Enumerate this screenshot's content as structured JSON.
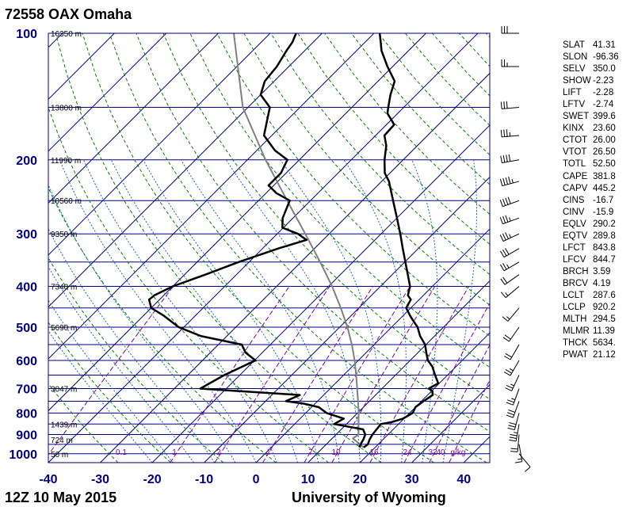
{
  "title": "72558 OAX Omaha",
  "footer": {
    "time": "12Z 10 May 2015",
    "source": "University of Wyoming"
  },
  "chart_data": {
    "type": "skew-t",
    "x_ticks": [
      -40,
      -30,
      -20,
      -10,
      0,
      10,
      20,
      30,
      40
    ],
    "xlim": [
      -40,
      45
    ],
    "p_ticks": [
      100,
      200,
      300,
      400,
      500,
      600,
      700,
      800,
      900,
      1000
    ],
    "plim": [
      100,
      1050
    ],
    "isobars": [
      100,
      150,
      200,
      250,
      300,
      350,
      400,
      450,
      500,
      550,
      600,
      650,
      700,
      750,
      800,
      850,
      900,
      950,
      1000,
      1050
    ],
    "height_labels": [
      {
        "p": 100,
        "text": "16350 m"
      },
      {
        "p": 150,
        "text": "13800 m"
      },
      {
        "p": 200,
        "text": "11990 m"
      },
      {
        "p": 250,
        "text": "10560 m"
      },
      {
        "p": 300,
        "text": "9350 m"
      },
      {
        "p": 400,
        "text": "7340 m"
      },
      {
        "p": 500,
        "text": "5690 m"
      },
      {
        "p": 700,
        "text": "3047 m"
      },
      {
        "p": 850,
        "text": "1439 m"
      },
      {
        "p": 925,
        "text": "724 m"
      },
      {
        "p": 1000,
        "text": "56 m"
      }
    ],
    "mixing_ratio_labels": [
      "0.1",
      "1",
      "2",
      "4",
      "7",
      "10",
      "16",
      "24",
      "32",
      "40",
      "g/kg"
    ],
    "temperature": [
      [
        966,
        17.8
      ],
      [
        950,
        18.0
      ],
      [
        925,
        17.4
      ],
      [
        900,
        17.0
      ],
      [
        875,
        16.8
      ],
      [
        850,
        16.6
      ],
      [
        840,
        18.4
      ],
      [
        825,
        19.8
      ],
      [
        800,
        20.6
      ],
      [
        775,
        20.0
      ],
      [
        750,
        20.4
      ],
      [
        725,
        21.0
      ],
      [
        710,
        20.2
      ],
      [
        700,
        19.0
      ],
      [
        680,
        19.8
      ],
      [
        650,
        17.6
      ],
      [
        620,
        15.4
      ],
      [
        600,
        13.4
      ],
      [
        575,
        11.6
      ],
      [
        550,
        9.8
      ],
      [
        525,
        7.2
      ],
      [
        500,
        5.0
      ],
      [
        480,
        2.6
      ],
      [
        470,
        1.4
      ],
      [
        450,
        -0.9
      ],
      [
        430,
        -1.6
      ],
      [
        420,
        -3.0
      ],
      [
        400,
        -4.3
      ],
      [
        375,
        -7.0
      ],
      [
        350,
        -9.9
      ],
      [
        325,
        -13.0
      ],
      [
        300,
        -16.3
      ],
      [
        275,
        -20.0
      ],
      [
        250,
        -24.1
      ],
      [
        225,
        -28.6
      ],
      [
        215,
        -31.0
      ],
      [
        200,
        -33.6
      ],
      [
        185,
        -36.0
      ],
      [
        175,
        -38.3
      ],
      [
        165,
        -38.5
      ],
      [
        155,
        -42.0
      ],
      [
        150,
        -43.0
      ],
      [
        140,
        -45.0
      ],
      [
        130,
        -46.8
      ],
      [
        120,
        -51.0
      ],
      [
        110,
        -55.2
      ],
      [
        105,
        -57.0
      ],
      [
        100,
        -58.9
      ]
    ],
    "dewpoint": [
      [
        966,
        17.0
      ],
      [
        950,
        16.6
      ],
      [
        925,
        16.2
      ],
      [
        900,
        15.6
      ],
      [
        875,
        14.2
      ],
      [
        850,
        7.6
      ],
      [
        825,
        8.4
      ],
      [
        800,
        4.0
      ],
      [
        775,
        1.4
      ],
      [
        760,
        -2.2
      ],
      [
        750,
        -6.1
      ],
      [
        725,
        -4.6
      ],
      [
        700,
        -25.0
      ],
      [
        650,
        -23.0
      ],
      [
        600,
        -19.8
      ],
      [
        575,
        -23.2
      ],
      [
        550,
        -25.5
      ],
      [
        525,
        -35.0
      ],
      [
        500,
        -41.0
      ],
      [
        470,
        -46.0
      ],
      [
        450,
        -50.0
      ],
      [
        430,
        -52.0
      ],
      [
        420,
        -51.8
      ],
      [
        400,
        -50.0
      ],
      [
        375,
        -46.0
      ],
      [
        350,
        -42.0
      ],
      [
        325,
        -37.0
      ],
      [
        310,
        -33.2
      ],
      [
        300,
        -36.0
      ],
      [
        290,
        -40.2
      ],
      [
        275,
        -42.0
      ],
      [
        250,
        -44.0
      ],
      [
        240,
        -48.0
      ],
      [
        230,
        -51.0
      ],
      [
        215,
        -51.0
      ],
      [
        200,
        -52.3
      ],
      [
        190,
        -56.5
      ],
      [
        175,
        -61.5
      ],
      [
        160,
        -64.0
      ],
      [
        150,
        -65.8
      ],
      [
        140,
        -70.0
      ],
      [
        130,
        -71.8
      ],
      [
        120,
        -72.3
      ],
      [
        110,
        -73.5
      ],
      [
        105,
        -74.0
      ],
      [
        100,
        -75.0
      ]
    ],
    "parcel": [
      [
        966,
        17.8
      ],
      [
        920,
        14.0
      ],
      [
        900,
        14.3
      ],
      [
        850,
        12.3
      ],
      [
        800,
        10.2
      ],
      [
        750,
        7.8
      ],
      [
        700,
        5.2
      ],
      [
        650,
        2.4
      ],
      [
        600,
        -0.7
      ],
      [
        550,
        -4.3
      ],
      [
        500,
        -8.5
      ],
      [
        450,
        -13.5
      ],
      [
        400,
        -19.3
      ],
      [
        350,
        -26.3
      ],
      [
        300,
        -34.6
      ],
      [
        250,
        -44.5
      ],
      [
        200,
        -56.5
      ],
      [
        150,
        -71.0
      ],
      [
        100,
        -87.0
      ]
    ],
    "wind_barbs": [
      {
        "p": 100,
        "dir": 270,
        "spd": 30
      },
      {
        "p": 120,
        "dir": 270,
        "spd": 25
      },
      {
        "p": 150,
        "dir": 265,
        "spd": 30
      },
      {
        "p": 175,
        "dir": 265,
        "spd": 35
      },
      {
        "p": 200,
        "dir": 260,
        "spd": 40
      },
      {
        "p": 225,
        "dir": 255,
        "spd": 45
      },
      {
        "p": 250,
        "dir": 250,
        "spd": 40
      },
      {
        "p": 275,
        "dir": 250,
        "spd": 35
      },
      {
        "p": 300,
        "dir": 245,
        "spd": 35
      },
      {
        "p": 325,
        "dir": 240,
        "spd": 30
      },
      {
        "p": 350,
        "dir": 240,
        "spd": 25
      },
      {
        "p": 375,
        "dir": 235,
        "spd": 20
      },
      {
        "p": 400,
        "dir": 230,
        "spd": 15
      },
      {
        "p": 450,
        "dir": 220,
        "spd": 15
      },
      {
        "p": 500,
        "dir": 215,
        "spd": 20
      },
      {
        "p": 550,
        "dir": 210,
        "spd": 20
      },
      {
        "p": 600,
        "dir": 210,
        "spd": 25
      },
      {
        "p": 650,
        "dir": 205,
        "spd": 25
      },
      {
        "p": 700,
        "dir": 200,
        "spd": 25
      },
      {
        "p": 750,
        "dir": 200,
        "spd": 30
      },
      {
        "p": 800,
        "dir": 195,
        "spd": 30
      },
      {
        "p": 850,
        "dir": 190,
        "spd": 35
      },
      {
        "p": 900,
        "dir": 185,
        "spd": 20
      },
      {
        "p": 950,
        "dir": 170,
        "spd": 15
      },
      {
        "p": 1000,
        "dir": 140,
        "spd": 10
      }
    ]
  },
  "indices": [
    {
      "name": "SLAT",
      "value": "41.31"
    },
    {
      "name": "SLON",
      "value": "-96.36"
    },
    {
      "name": "SELV",
      "value": "350.0"
    },
    {
      "name": "SHOW",
      "value": "-2.23"
    },
    {
      "name": "LIFT",
      "value": "-2.28"
    },
    {
      "name": "LFTV",
      "value": "-2.74"
    },
    {
      "name": "SWET",
      "value": "399.6"
    },
    {
      "name": "KINX",
      "value": "23.60"
    },
    {
      "name": "CTOT",
      "value": "26.00"
    },
    {
      "name": "VTOT",
      "value": "26.50"
    },
    {
      "name": "TOTL",
      "value": "52.50"
    },
    {
      "name": "CAPE",
      "value": "381.8"
    },
    {
      "name": "CAPV",
      "value": "445.2"
    },
    {
      "name": "CINS",
      "value": "-16.7"
    },
    {
      "name": "CINV",
      "value": "-15.9"
    },
    {
      "name": "EQLV",
      "value": "290.2"
    },
    {
      "name": "EQTV",
      "value": "289.8"
    },
    {
      "name": "LFCT",
      "value": "843.8"
    },
    {
      "name": "LFCV",
      "value": "844.7"
    },
    {
      "name": "BRCH",
      "value": "3.59"
    },
    {
      "name": "BRCV",
      "value": "4.19"
    },
    {
      "name": "LCLT",
      "value": "287.6"
    },
    {
      "name": "LCLP",
      "value": "920.2"
    },
    {
      "name": "MLTH",
      "value": "294.5"
    },
    {
      "name": "MLMR",
      "value": "11.39"
    },
    {
      "name": "THCK",
      "value": "5634."
    },
    {
      "name": "PWAT",
      "value": "21.12"
    }
  ],
  "colors": {
    "temperature": "#000000",
    "dewpoint": "#000000",
    "parcel": "#808080",
    "isotherm": "#000080",
    "isobar": "#000080",
    "dry_adiabat": "#008000",
    "moist_adiabat": "#1e66b4",
    "mixing_ratio": "#8000a0"
  }
}
